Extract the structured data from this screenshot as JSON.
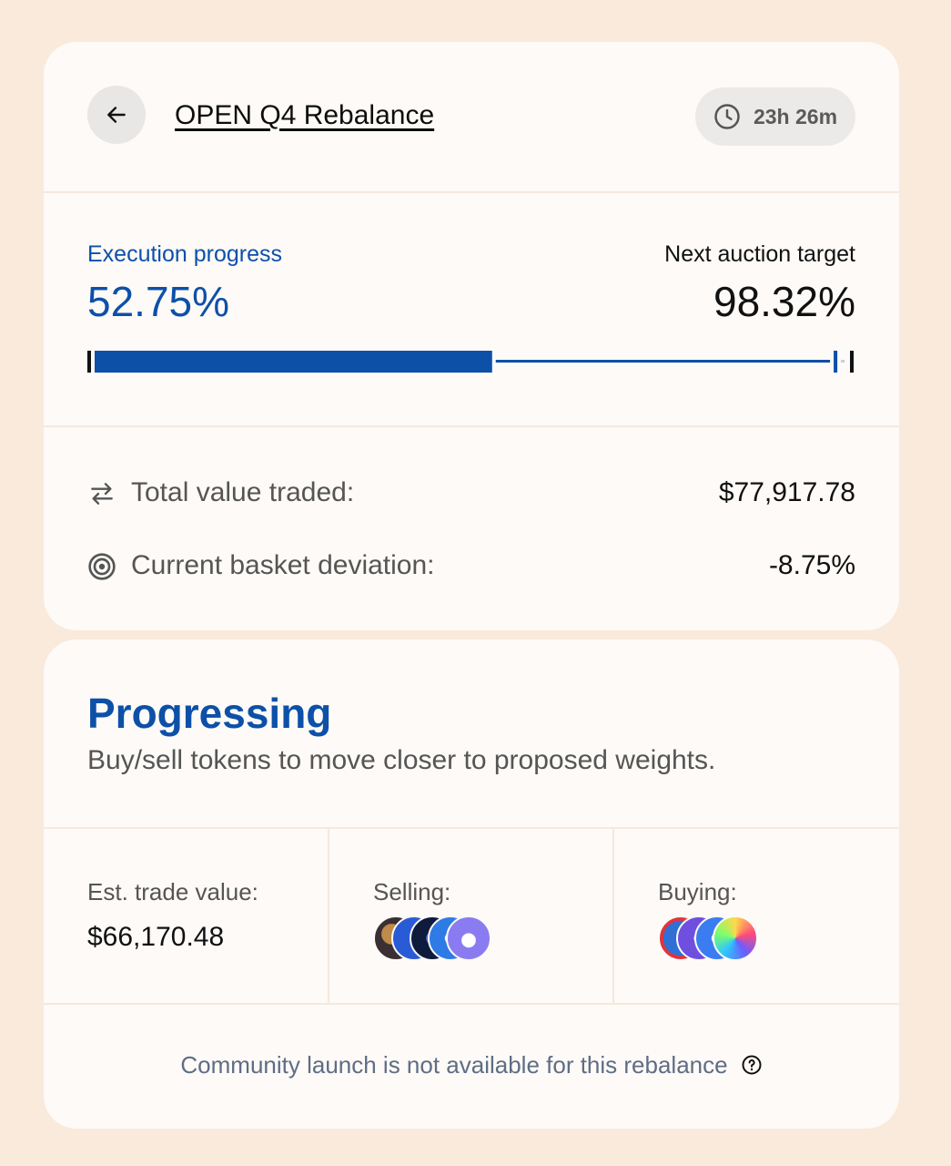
{
  "header": {
    "title": "OPEN Q4 Rebalance",
    "timer": "23h 26m"
  },
  "progress": {
    "execution_label": "Execution progress",
    "execution_value": "52.75%",
    "execution_fraction": 0.5275,
    "target_label": "Next auction target",
    "target_value": "98.32%",
    "target_fraction": 0.9832
  },
  "stats": {
    "total_value_label": "Total value traded:",
    "total_value": "$77,917.78",
    "deviation_label": "Current basket deviation:",
    "deviation": "-8.75%"
  },
  "status": {
    "heading": "Progressing",
    "description": "Buy/sell tokens to move closer to proposed weights."
  },
  "trade": {
    "est_label": "Est. trade value:",
    "est_value": "$66,170.48",
    "selling_label": "Selling:",
    "buying_label": "Buying:",
    "selling_tokens": [
      "token-a",
      "token-b",
      "token-c",
      "token-d",
      "token-e"
    ],
    "buying_tokens": [
      "token-f",
      "token-g",
      "token-h",
      "token-i"
    ]
  },
  "footer": {
    "note": "Community launch is not available for this rebalance"
  },
  "colors": {
    "accent": "#0d50a8",
    "background": "#f9eadc",
    "card": "#fdfaf7"
  }
}
